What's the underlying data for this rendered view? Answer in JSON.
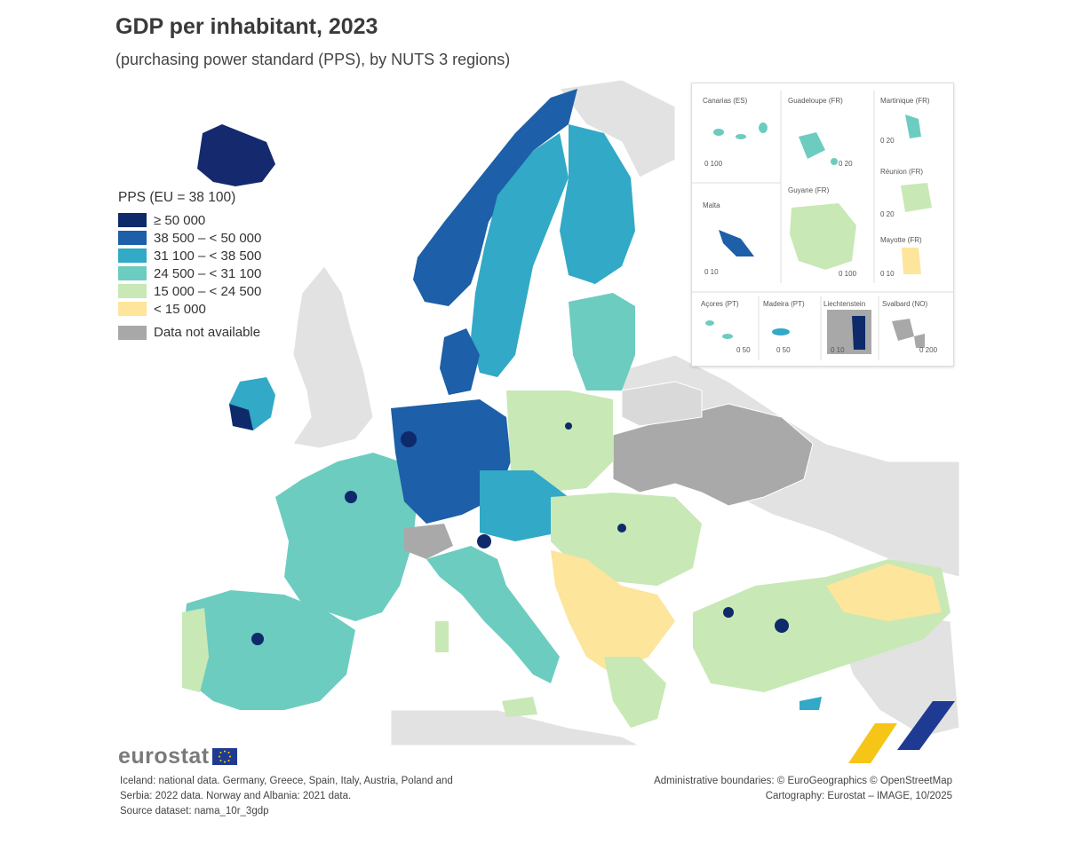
{
  "header": {
    "title": "GDP per inhabitant, 2023",
    "subtitle": "(purchasing power standard (PPS), by NUTS 3 regions)"
  },
  "legend": {
    "title": "PPS (EU = 38 100)",
    "classes": [
      {
        "label": "≥ 50 000",
        "color": "#0e2a6b"
      },
      {
        "label": "38 500 – < 50 000",
        "color": "#1d5fa8"
      },
      {
        "label": "31 100 – < 38 500",
        "color": "#32a9c6"
      },
      {
        "label": "24 500 – < 31 100",
        "color": "#6cccc0"
      },
      {
        "label": "15 000 – < 24 500",
        "color": "#c8e8b5"
      },
      {
        "label": "< 15 000",
        "color": "#fde59b"
      }
    ],
    "no_data": {
      "label": "Data not available",
      "color": "#a8a8a8"
    }
  },
  "insets": {
    "canarias": {
      "label": "Canarias (ES)",
      "scale": "0  100"
    },
    "guadeloupe": {
      "label": "Guadeloupe (FR)",
      "scale": "0  20"
    },
    "martinique": {
      "label": "Martinique (FR)",
      "scale": "0  20"
    },
    "reunion": {
      "label": "Réunion (FR)",
      "scale": "0  20"
    },
    "malta": {
      "label": "Malta",
      "scale": "0  10"
    },
    "guyane": {
      "label": "Guyane (FR)",
      "scale": "0     100"
    },
    "mayotte": {
      "label": "Mayotte (FR)",
      "scale": "0  10"
    },
    "acores": {
      "label": "Açores (PT)",
      "scale": "0  50"
    },
    "madeira": {
      "label": "Madeira (PT)",
      "scale": "0   50"
    },
    "liechtenstein": {
      "label": "Liechtenstein",
      "scale": "0  10"
    },
    "svalbard": {
      "label": "Svalbard (NO)",
      "scale": "0   200"
    }
  },
  "branding": {
    "logo_text": "eurostat"
  },
  "footnotes": {
    "line1": "Iceland: national data. Germany, Greece, Spain, Italy, Austria, Poland and",
    "line2": "Serbia: 2022 data. Norway and Albania: 2021 data.",
    "line3": "Source dataset: nama_10r_3gdp"
  },
  "credits": {
    "line1": "Administrative boundaries: © EuroGeographics © OpenStreetMap",
    "line2": "Cartography: Eurostat – IMAGE, 10/2025"
  },
  "colors": {
    "background_land": "#e3e3e3",
    "sea": "#ffffff",
    "accent_yellow": "#f5c518",
    "accent_blue": "#1f3a93"
  }
}
